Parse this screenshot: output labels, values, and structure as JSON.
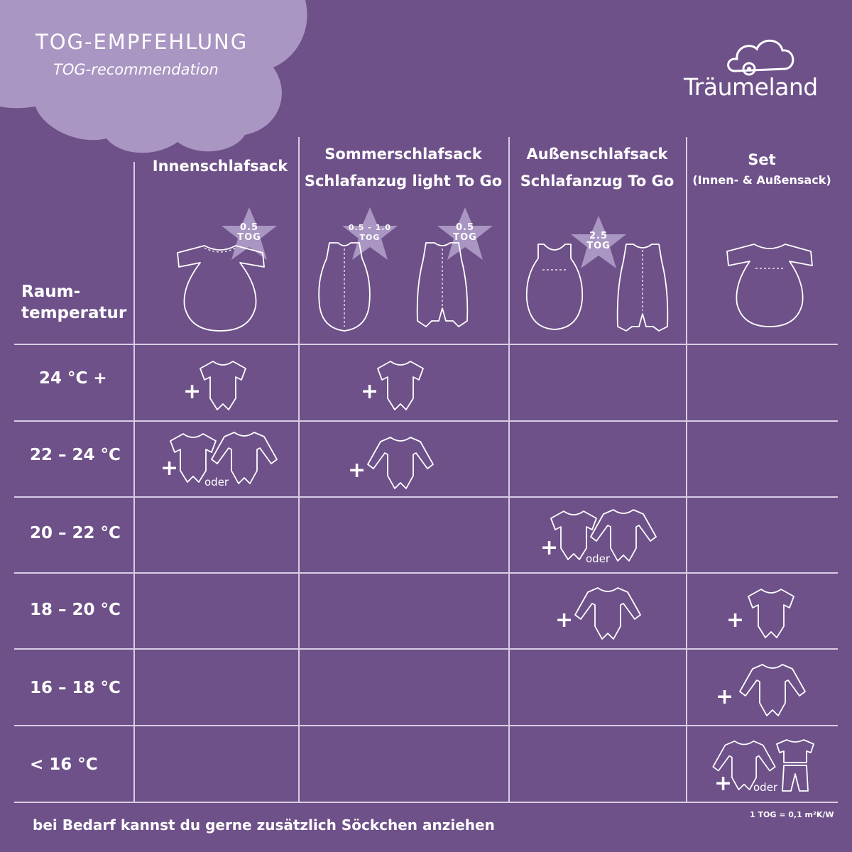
{
  "header": {
    "title": "TOG-EMPFEHLUNG",
    "subtitle": "TOG-recommendation",
    "brand": "Träumeland"
  },
  "columns": [
    {
      "label": "Innenschlafsack"
    },
    {
      "label": "Sommerschlafsack",
      "label2": "Schlafanzug light To Go"
    },
    {
      "label": "Außenschlafsack",
      "label2": "Schlafanzug To Go"
    },
    {
      "label": "Set",
      "sub": "(Innen- & Außensack)"
    }
  ],
  "row_header": [
    "Raum-",
    "temperatur"
  ],
  "tog_badges": [
    {
      "value": "0.5",
      "unit": "TOG"
    },
    {
      "value": "0.5 - 1.0",
      "unit": "TOG"
    },
    {
      "value": "0.5",
      "unit": "TOG"
    },
    {
      "value": "2.5",
      "unit": "TOG"
    }
  ],
  "rows": [
    "24 °C +",
    "22 – 24 °C",
    "20 – 22 °C",
    "18 – 20 °C",
    "16 – 18 °C",
    "< 16 °C"
  ],
  "plus_sign": "+",
  "or_word": "oder",
  "footer": {
    "note": "bei Bedarf kannst du gerne zusätzlich Söckchen anziehen",
    "unit_note": "1 TOG = 0,1 m²K/W"
  },
  "colors": {
    "background": "#6e5189",
    "cloud": "#a996c2",
    "line": "#d9cce4",
    "star": "#a996c2"
  }
}
